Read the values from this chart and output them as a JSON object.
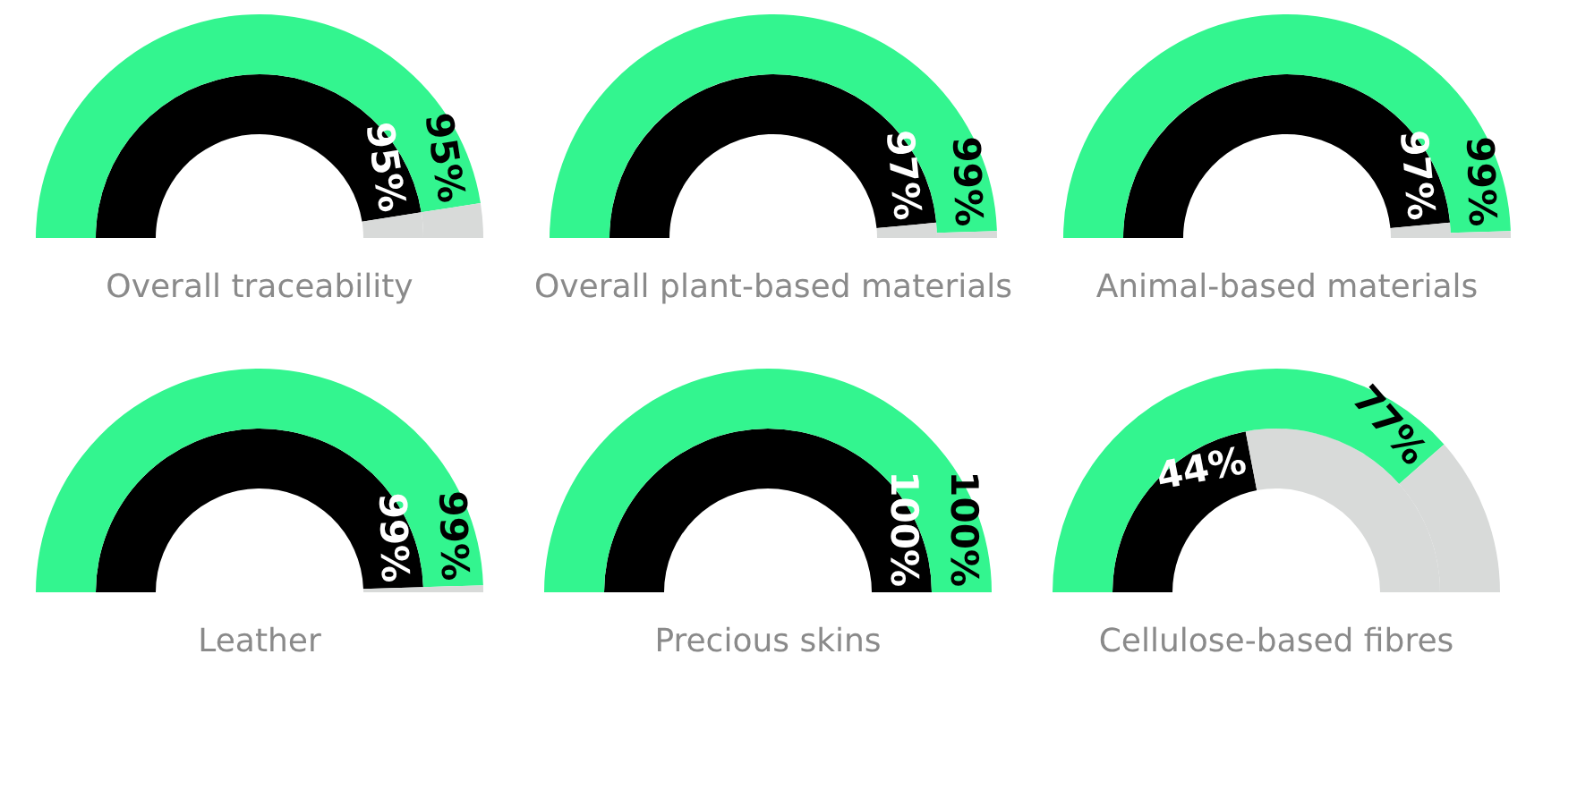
{
  "chart_data": [
    {
      "type": "donut",
      "title": "Overall traceability",
      "categories": [
        null,
        null
      ],
      "series": [
        {
          "values": [
            95,
            5
          ],
          "colors": [
            "#000000",
            "#d8dad9"
          ],
          "value_labels": [
            "95%",
            null
          ]
        },
        {
          "values": [
            95,
            5
          ],
          "colors": [
            "#33f58f",
            "#d8dad9"
          ],
          "value_labels": [
            "95%",
            null
          ]
        }
      ]
    },
    {
      "type": "donut",
      "title": "Overall plant-based materials",
      "categories": [
        null,
        null
      ],
      "series": [
        {
          "values": [
            97,
            3
          ],
          "colors": [
            "#000000",
            "#d8dad9"
          ],
          "value_labels": [
            "97%",
            null
          ]
        },
        {
          "values": [
            99,
            1
          ],
          "colors": [
            "#33f58f",
            "#d8dad9"
          ],
          "value_labels": [
            "99%",
            null
          ]
        }
      ]
    },
    {
      "type": "donut",
      "title": "Animal-based materials",
      "categories": [
        null,
        null
      ],
      "series": [
        {
          "values": [
            97,
            3
          ],
          "colors": [
            "#000000",
            "#d8dad9"
          ],
          "value_labels": [
            "97%",
            null
          ]
        },
        {
          "values": [
            99,
            1
          ],
          "colors": [
            "#33f58f",
            "#d8dad9"
          ],
          "value_labels": [
            "99%",
            null
          ]
        }
      ]
    },
    {
      "type": "donut",
      "title": "Leather",
      "categories": [
        null,
        null
      ],
      "series": [
        {
          "values": [
            99,
            1
          ],
          "colors": [
            "#000000",
            "#d8dad9"
          ],
          "value_labels": [
            "99%",
            null
          ]
        },
        {
          "values": [
            99,
            1
          ],
          "colors": [
            "#33f58f",
            "#d8dad9"
          ],
          "value_labels": [
            "99%",
            null
          ]
        }
      ]
    },
    {
      "type": "donut",
      "title": "Precious skins",
      "categories": [
        null,
        null
      ],
      "series": [
        {
          "values": [
            100,
            0
          ],
          "colors": [
            "#000000",
            "#d8dad9"
          ],
          "value_labels": [
            "100%",
            null
          ]
        },
        {
          "values": [
            100,
            0
          ],
          "colors": [
            "#33f58f",
            "#d8dad9"
          ],
          "value_labels": [
            "100%",
            null
          ]
        }
      ]
    },
    {
      "type": "donut",
      "title": "Cellulose-based fibres",
      "categories": [
        null,
        null
      ],
      "series": [
        {
          "values": [
            44,
            56
          ],
          "colors": [
            "#000000",
            "#d8dad9"
          ],
          "value_labels": [
            "44%",
            null
          ]
        },
        {
          "values": [
            77,
            23
          ],
          "colors": [
            "#33f58f",
            "#d8dad9"
          ],
          "value_labels": [
            "77%",
            null
          ]
        }
      ]
    }
  ]
}
